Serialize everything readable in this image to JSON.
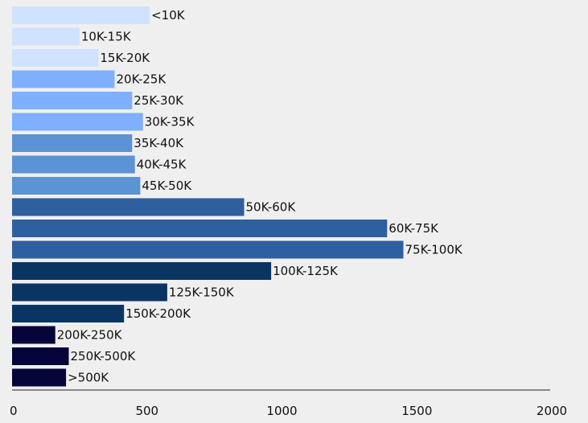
{
  "chart_data": {
    "type": "bar",
    "orientation": "horizontal",
    "categories": [
      "<10K",
      "10K-15K",
      "15K-20K",
      "20K-25K",
      "25K-30K",
      "30K-35K",
      "35K-40K",
      "40K-45K",
      "45K-50K",
      "50K-60K",
      "60K-75K",
      "75K-100K",
      "100K-125K",
      "125K-150K",
      "150K-200K",
      "200K-250K",
      "250K-500K",
      ">500K"
    ],
    "values": [
      510,
      250,
      320,
      380,
      445,
      485,
      445,
      455,
      475,
      860,
      1390,
      1450,
      960,
      575,
      415,
      160,
      210,
      200
    ],
    "colors": [
      "#cfe2ff",
      "#cfe2ff",
      "#cfe2ff",
      "#7fb0ff",
      "#7fb0ff",
      "#7fb0ff",
      "#5b93d4",
      "#5b93d4",
      "#5b93d4",
      "#2e5f9f",
      "#2e5f9f",
      "#2e5f9f",
      "#0a3563",
      "#0a3563",
      "#0a3563",
      "#05053a",
      "#05053a",
      "#05053a"
    ],
    "xlim": [
      0,
      2000
    ],
    "x_ticks": [
      "0",
      "500",
      "1000",
      "1500",
      "2000"
    ],
    "title": "",
    "xlabel": "",
    "ylabel": "",
    "grid": false,
    "labels_at_bar_end": true
  }
}
